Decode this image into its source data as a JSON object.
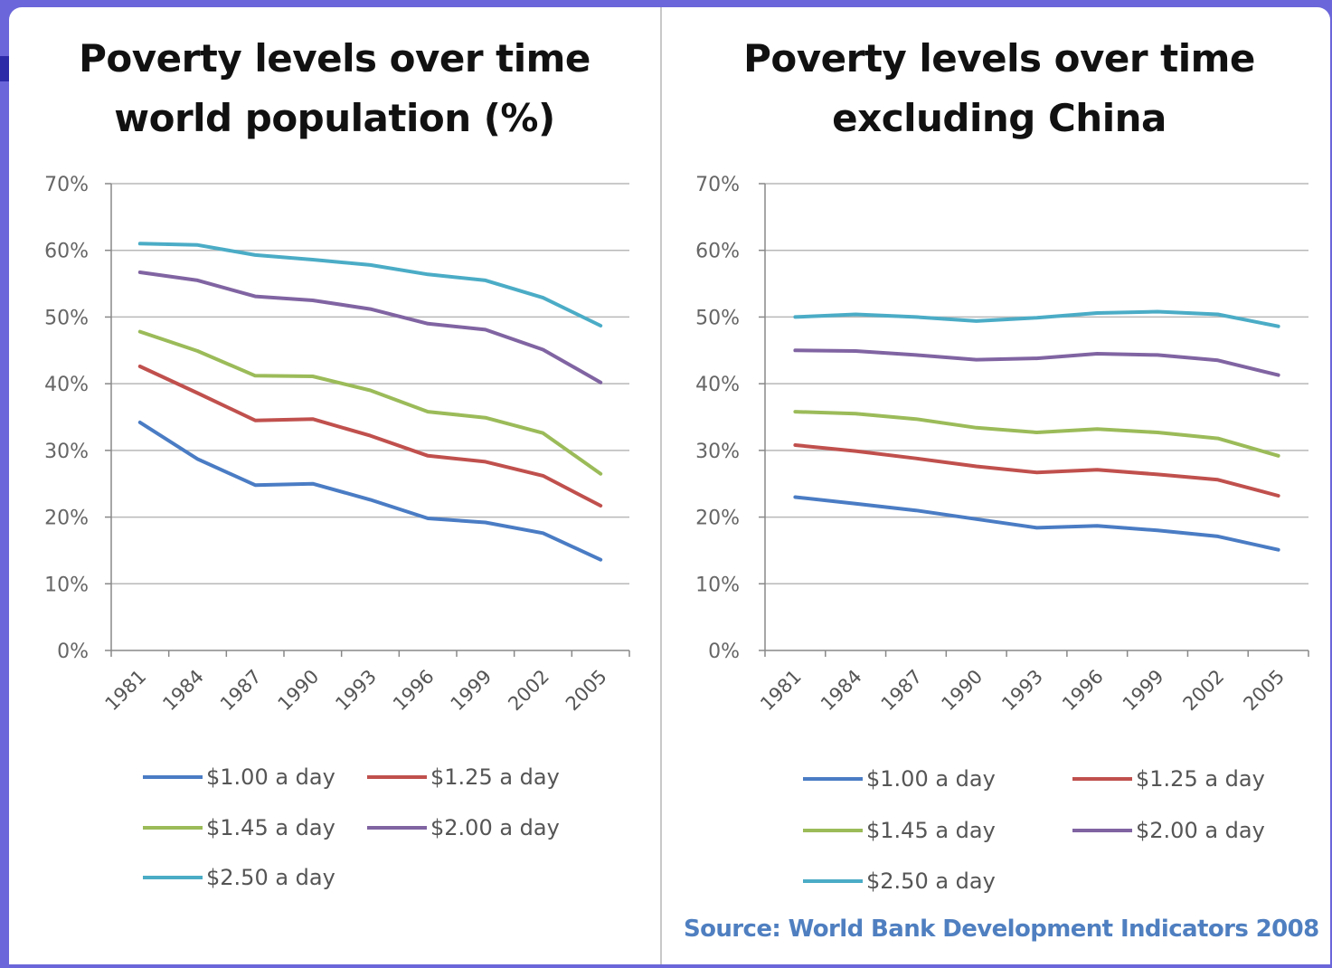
{
  "chart_data": [
    {
      "type": "line",
      "title": "Poverty levels over time world population (%)",
      "title_lines": [
        "Poverty levels over time",
        "world population (%)"
      ],
      "x": [
        "1981",
        "1984",
        "1987",
        "1990",
        "1993",
        "1996",
        "1999",
        "2002",
        "2005"
      ],
      "ylim": [
        0,
        70
      ],
      "yticks": [
        "0%",
        "10%",
        "20%",
        "30%",
        "40%",
        "50%",
        "60%",
        "70%"
      ],
      "grid": true,
      "legend_position": "bottom",
      "series": [
        {
          "name": "$1.00 a day",
          "color": "#4a7cc4",
          "values": [
            34.2,
            28.7,
            24.8,
            25.0,
            22.6,
            19.8,
            19.2,
            17.6,
            13.6
          ]
        },
        {
          "name": "$1.25 a day",
          "color": "#c0504d",
          "values": [
            42.6,
            38.6,
            34.5,
            34.7,
            32.2,
            29.2,
            28.3,
            26.2,
            21.7
          ]
        },
        {
          "name": "$1.45 a day",
          "color": "#9bbb59",
          "values": [
            47.8,
            44.9,
            41.2,
            41.1,
            39.0,
            35.8,
            34.9,
            32.6,
            26.5
          ]
        },
        {
          "name": "$2.00 a day",
          "color": "#8064a2",
          "values": [
            56.7,
            55.5,
            53.1,
            52.5,
            51.2,
            49.0,
            48.1,
            45.1,
            40.2
          ]
        },
        {
          "name": "$2.50 a day",
          "color": "#4bacc6",
          "values": [
            61.0,
            60.8,
            59.3,
            58.6,
            57.8,
            56.4,
            55.5,
            52.9,
            48.7
          ]
        }
      ]
    },
    {
      "type": "line",
      "title": "Poverty levels over time excluding China",
      "title_lines": [
        "Poverty levels over time",
        "excluding China"
      ],
      "x": [
        "1981",
        "1984",
        "1987",
        "1990",
        "1993",
        "1996",
        "1999",
        "2002",
        "2005"
      ],
      "ylim": [
        0,
        70
      ],
      "yticks": [
        "0%",
        "10%",
        "20%",
        "30%",
        "40%",
        "50%",
        "60%",
        "70%"
      ],
      "grid": true,
      "legend_position": "bottom",
      "series": [
        {
          "name": "$1.00 a day",
          "color": "#4a7cc4",
          "values": [
            23.0,
            22.0,
            21.0,
            19.7,
            18.4,
            18.7,
            18.0,
            17.1,
            15.1
          ]
        },
        {
          "name": "$1.25 a day",
          "color": "#c0504d",
          "values": [
            30.8,
            29.9,
            28.8,
            27.6,
            26.7,
            27.1,
            26.4,
            25.6,
            23.2
          ]
        },
        {
          "name": "$1.45 a day",
          "color": "#9bbb59",
          "values": [
            35.8,
            35.5,
            34.7,
            33.4,
            32.7,
            33.2,
            32.7,
            31.8,
            29.2
          ]
        },
        {
          "name": "$2.00 a day",
          "color": "#8064a2",
          "values": [
            45.0,
            44.9,
            44.3,
            43.6,
            43.8,
            44.5,
            44.3,
            43.5,
            41.3
          ]
        },
        {
          "name": "$2.50 a day",
          "color": "#4bacc6",
          "values": [
            50.0,
            50.4,
            50.0,
            49.4,
            49.9,
            50.6,
            50.8,
            50.4,
            48.6
          ]
        }
      ]
    }
  ],
  "source": "Source: World Bank Development Indicators 2008"
}
